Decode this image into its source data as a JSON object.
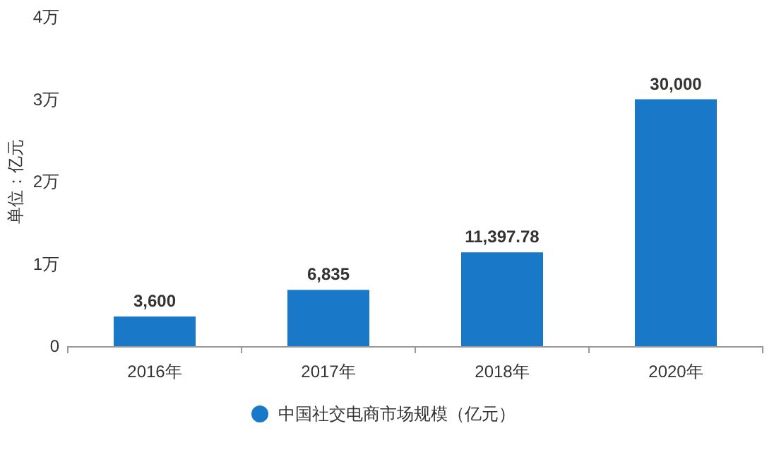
{
  "chart_data": {
    "type": "bar",
    "ylabel": "单位：亿元",
    "categories": [
      "2016年",
      "2017年",
      "2018年",
      "2020年"
    ],
    "series": [
      {
        "name": "中国社交电商市场规模（亿元）",
        "color": "#1a78c8",
        "values": [
          0.36,
          0.6835,
          1.139778,
          3
        ]
      }
    ],
    "value_labels": [
      "3,600",
      "6,835",
      "11,397.78",
      "30,000"
    ],
    "ylim": [
      0,
      4
    ],
    "yticks": [
      0,
      {
        "value": 1,
        "label": "1万"
      },
      {
        "value": 2,
        "label": "2万"
      },
      {
        "value": 3,
        "label": "3万"
      },
      {
        "value": 4,
        "label": "4万"
      }
    ],
    "grid": false,
    "legend": "bottom"
  }
}
